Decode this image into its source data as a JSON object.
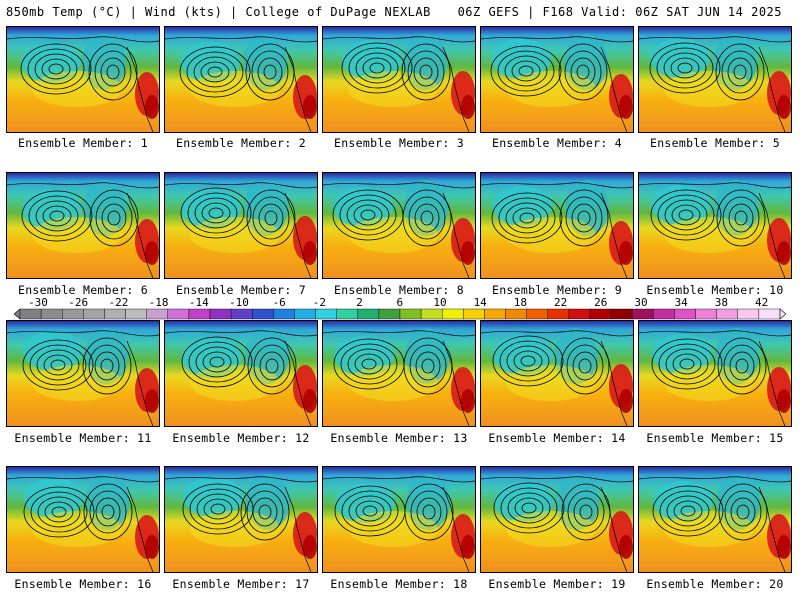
{
  "header": {
    "left": "850mb Temp (°C) | Wind (kts) | College of DuPage NEXLAB",
    "right": "06Z GEFS | F168 Valid: 06Z SAT JUN 14 2025"
  },
  "members": [
    "Ensemble Member: 1",
    "Ensemble Member: 2",
    "Ensemble Member: 3",
    "Ensemble Member: 4",
    "Ensemble Member: 5",
    "Ensemble Member: 6",
    "Ensemble Member: 7",
    "Ensemble Member: 8",
    "Ensemble Member: 9",
    "Ensemble Member: 10",
    "Ensemble Member: 11",
    "Ensemble Member: 12",
    "Ensemble Member: 13",
    "Ensemble Member: 14",
    "Ensemble Member: 15",
    "Ensemble Member: 16",
    "Ensemble Member: 17",
    "Ensemble Member: 18",
    "Ensemble Member: 19",
    "Ensemble Member: 20"
  ],
  "colorbar": {
    "ticks": [
      "-30",
      "-26",
      "-22",
      "-18",
      "-14",
      "-10",
      "-6",
      "-2",
      "2",
      "6",
      "10",
      "14",
      "18",
      "22",
      "26",
      "30",
      "34",
      "38",
      "42"
    ],
    "colors": [
      "#808080",
      "#8c8c8c",
      "#989898",
      "#a4a4a4",
      "#b0b0b0",
      "#bcbcbc",
      "#c8a0d0",
      "#d070d8",
      "#c040c8",
      "#9030c0",
      "#6040c8",
      "#3050d0",
      "#2080e0",
      "#20b0e8",
      "#30d0e0",
      "#30d0a0",
      "#20b070",
      "#40a040",
      "#80c020",
      "#c0e020",
      "#f0f000",
      "#f8d000",
      "#f8a800",
      "#f08800",
      "#f06000",
      "#e83000",
      "#d01010",
      "#b00000",
      "#900000",
      "#a01060",
      "#c030a0",
      "#e050c8",
      "#f080d8",
      "#f0a0e0",
      "#f8c8f0",
      "#f8e0f8"
    ]
  }
}
